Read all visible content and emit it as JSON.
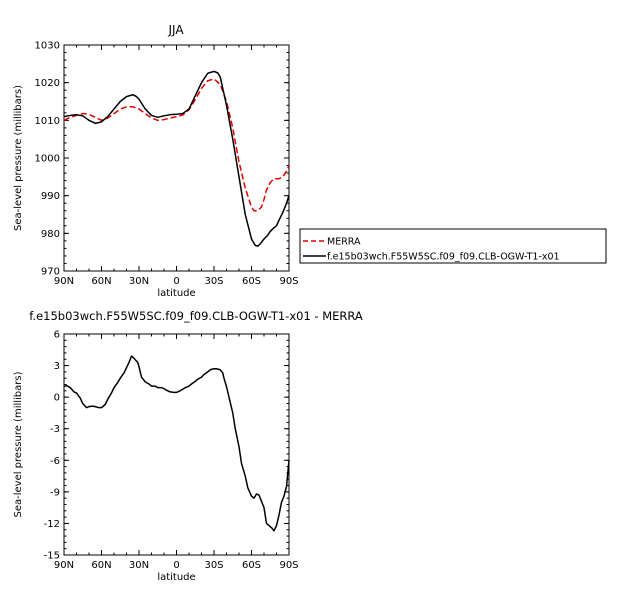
{
  "chart_data": [
    {
      "type": "line",
      "title": "JJA",
      "xlabel": "latitude",
      "ylabel": "Sea-level pressure (millibars)",
      "xlim": [
        90,
        -90
      ],
      "ylim": [
        970,
        1030
      ],
      "xticks": [
        90,
        60,
        30,
        0,
        -30,
        -60,
        -90
      ],
      "xtick_labels": [
        "90N",
        "60N",
        "30N",
        "0",
        "30S",
        "60S",
        "90S"
      ],
      "yticks": [
        970,
        980,
        990,
        1000,
        1010,
        1020,
        1030
      ],
      "ytick_labels": [
        "970",
        "980",
        "990",
        "1000",
        "1010",
        "1020",
        "1030"
      ],
      "grid": false,
      "legend": "outside-right",
      "series": [
        {
          "name": "MERRA",
          "color": "#e00000",
          "dash": "dashed",
          "x": [
            90,
            85,
            80,
            75,
            70,
            65,
            60,
            55,
            50,
            45,
            40,
            35,
            30,
            25,
            20,
            15,
            10,
            5,
            0,
            -5,
            -10,
            -15,
            -20,
            -25,
            -30,
            -35,
            -40,
            -45,
            -50,
            -55,
            -60,
            -62,
            -65,
            -68,
            -70,
            -72,
            -75,
            -78,
            -80,
            -82,
            -85,
            -88,
            -90
          ],
          "y": [
            1010,
            1010.8,
            1011.3,
            1011.8,
            1011.6,
            1010.8,
            1010,
            1010.6,
            1011.8,
            1013,
            1013.6,
            1013.6,
            1013,
            1011.8,
            1010.6,
            1010,
            1010.2,
            1010.6,
            1011,
            1011.4,
            1012.8,
            1015.5,
            1018.5,
            1020.5,
            1021,
            1019.5,
            1015,
            1008,
            999,
            992,
            987,
            986,
            986,
            987,
            989,
            991.5,
            993.5,
            994.5,
            994.5,
            994.5,
            995,
            996.5,
            998
          ]
        },
        {
          "name": "f.e15b03wch.F55W5SC.f09_f09.CLB-OGW-T1-x01",
          "color": "#000000",
          "dash": "solid",
          "x": [
            90,
            85,
            80,
            75,
            70,
            65,
            60,
            55,
            50,
            45,
            40,
            35,
            32,
            30,
            25,
            20,
            15,
            10,
            5,
            0,
            -5,
            -10,
            -15,
            -20,
            -25,
            -30,
            -33,
            -35,
            -40,
            -45,
            -50,
            -55,
            -60,
            -63,
            -65,
            -67,
            -70,
            -73,
            -75,
            -78,
            -80,
            -82,
            -85,
            -88,
            -90
          ],
          "y": [
            1011,
            1011.3,
            1011.5,
            1011.2,
            1010,
            1009.2,
            1009.6,
            1011,
            1013,
            1015,
            1016.3,
            1016.8,
            1016.3,
            1015.6,
            1013,
            1011.3,
            1010.8,
            1011.2,
            1011.5,
            1011.6,
            1011.8,
            1013,
            1016.5,
            1020,
            1022.5,
            1023,
            1022.6,
            1021.5,
            1014,
            1005,
            995,
            985,
            978.5,
            976.8,
            976.6,
            977.2,
            978.5,
            979.5,
            980.5,
            981.5,
            982,
            983.5,
            985.5,
            988,
            990
          ]
        }
      ]
    },
    {
      "type": "line",
      "title": "f.e15b03wch.F55W5SC.f09_f09.CLB-OGW-T1-x01 - MERRA",
      "xlabel": "latitude",
      "ylabel": "Sea-level pressure (millibars)",
      "xlim": [
        90,
        -90
      ],
      "ylim": [
        -15,
        6
      ],
      "xticks": [
        90,
        60,
        30,
        0,
        -30,
        -60,
        -90
      ],
      "xtick_labels": [
        "90N",
        "60N",
        "30N",
        "0",
        "30S",
        "60S",
        "90S"
      ],
      "yticks": [
        -15,
        -12,
        -9,
        -6,
        -3,
        0,
        3,
        6
      ],
      "ytick_labels": [
        "-15",
        "-12",
        "-9",
        "-6",
        "-3",
        "0",
        "3",
        "6"
      ],
      "grid": false,
      "series": [
        {
          "color": "#000000",
          "dash": "solid",
          "x": [
            90,
            88,
            85,
            82,
            80,
            77,
            75,
            72,
            70,
            67,
            65,
            62,
            60,
            57,
            55,
            52,
            50,
            47,
            45,
            42,
            40,
            38,
            36,
            35,
            34,
            33,
            31,
            30,
            28,
            26,
            25,
            22,
            20,
            17,
            15,
            12,
            10,
            7,
            5,
            2,
            0,
            -2,
            -5,
            -7,
            -10,
            -12,
            -15,
            -17,
            -20,
            -22,
            -25,
            -27,
            -30,
            -32,
            -35,
            -37,
            -38,
            -40,
            -42,
            -45,
            -47,
            -50,
            -52,
            -55,
            -57,
            -60,
            -62,
            -64,
            -66,
            -68,
            -70,
            -72,
            -74,
            -76,
            -78,
            -80,
            -82,
            -84,
            -86,
            -88,
            -90
          ],
          "y": [
            1,
            1.1,
            0.9,
            0.5,
            0.4,
            -0.1,
            -0.6,
            -1,
            -0.9,
            -0.85,
            -0.9,
            -1,
            -1,
            -0.7,
            -0.2,
            0.4,
            0.9,
            1.4,
            1.8,
            2.3,
            2.8,
            3.3,
            3.9,
            3.8,
            3.7,
            3.55,
            3.3,
            2.9,
            1.9,
            1.6,
            1.45,
            1.25,
            1.05,
            1.05,
            0.9,
            0.9,
            0.8,
            0.6,
            0.5,
            0.45,
            0.45,
            0.55,
            0.75,
            0.9,
            1.05,
            1.25,
            1.5,
            1.7,
            1.9,
            2.15,
            2.4,
            2.6,
            2.7,
            2.7,
            2.6,
            2.3,
            1.8,
            1,
            0,
            -1.5,
            -3,
            -4.7,
            -6.3,
            -7.5,
            -8.6,
            -9.4,
            -9.6,
            -9.2,
            -9.3,
            -9.9,
            -10.5,
            -12,
            -12.2,
            -12.4,
            -12.7,
            -12.2,
            -11.2,
            -10,
            -9.4,
            -8.5,
            -6
          ]
        }
      ]
    }
  ]
}
